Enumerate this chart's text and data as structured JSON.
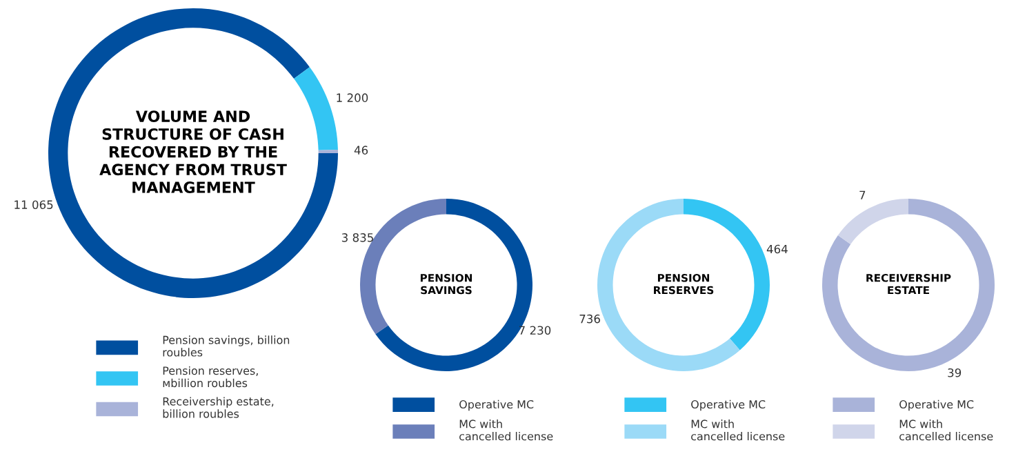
{
  "chart_data": [
    {
      "type": "donut",
      "title": "VOLUME AND\nSTRUCTURE OF CASH\nRECOVERED BY THE\nAGENCY FROM TRUST\nMANAGEMENT",
      "categories": [
        "Pension savings, billion\nroubles",
        "Pension reserves,\nмbillion roubles",
        "Receivership estate,\nbillion roubles"
      ],
      "values": [
        11065,
        1200,
        46
      ],
      "value_labels": [
        "11 065",
        "1 200",
        "46"
      ],
      "colors": [
        "#004f9f",
        "#33c5f3",
        "#a9b3d9"
      ],
      "legend": "bottom"
    },
    {
      "type": "donut",
      "title": "PENSION\nSAVINGS",
      "categories": [
        "Operative MC",
        "MC with\ncancelled license"
      ],
      "values": [
        7230,
        3835
      ],
      "value_labels": [
        "7 230",
        "3 835"
      ],
      "colors": [
        "#004f9f",
        "#6b7fba"
      ],
      "legend": "bottom"
    },
    {
      "type": "donut",
      "title": "PENSION\nRESERVES",
      "categories": [
        "Operative MC",
        "MC with\ncancelled license"
      ],
      "values": [
        464,
        736
      ],
      "value_labels": [
        "464",
        "736"
      ],
      "colors": [
        "#33c5f3",
        "#9bdaf7"
      ],
      "legend": "bottom"
    },
    {
      "type": "donut",
      "title": "RECEIVERSHIP\nESTATE",
      "categories": [
        "Operative MC",
        "MC with\ncancelled license"
      ],
      "values": [
        39,
        7
      ],
      "value_labels": [
        "39",
        "7"
      ],
      "colors": [
        "#a9b3d9",
        "#d0d5ea"
      ],
      "legend": "bottom"
    }
  ]
}
